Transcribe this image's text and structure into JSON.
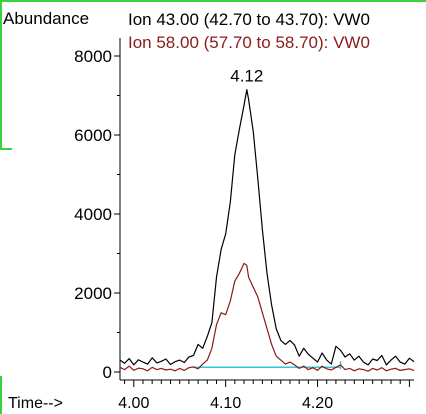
{
  "colors": {
    "frame": "#3ad13a",
    "ion43": "#000000",
    "ion58": "#8b1a1a",
    "baseline": "#33c8d8"
  },
  "chart_data": {
    "type": "line",
    "ylabel": "Abundance",
    "xlabel": "Time-->",
    "xlim": [
      3.985,
      4.305
    ],
    "ylim": [
      0,
      8000
    ],
    "x_ticks": [
      "4.00",
      "4.10",
      "4.20"
    ],
    "y_ticks": [
      "0",
      "2000",
      "4000",
      "6000",
      "8000"
    ],
    "peak_label": {
      "text": "4.12",
      "x": 4.123,
      "y": 7150
    },
    "baseline_segment": {
      "x_start": 4.065,
      "x_end": 4.225,
      "y": 120
    },
    "series": [
      {
        "name": "Ion  43.00 (42.70 to 43.70): VW0",
        "color": "#000000",
        "x": [
          3.985,
          3.99,
          3.995,
          4.0,
          4.005,
          4.01,
          4.015,
          4.02,
          4.025,
          4.03,
          4.035,
          4.04,
          4.045,
          4.05,
          4.055,
          4.06,
          4.065,
          4.07,
          4.075,
          4.08,
          4.085,
          4.09,
          4.095,
          4.1,
          4.105,
          4.11,
          4.115,
          4.12,
          4.123,
          4.125,
          4.13,
          4.135,
          4.14,
          4.145,
          4.15,
          4.155,
          4.16,
          4.165,
          4.17,
          4.175,
          4.18,
          4.185,
          4.19,
          4.195,
          4.2,
          4.205,
          4.21,
          4.215,
          4.22,
          4.225,
          4.23,
          4.235,
          4.24,
          4.245,
          4.25,
          4.255,
          4.26,
          4.265,
          4.27,
          4.275,
          4.28,
          4.285,
          4.29,
          4.295,
          4.3,
          4.305
        ],
        "y": [
          300,
          220,
          340,
          180,
          310,
          250,
          200,
          360,
          230,
          270,
          330,
          190,
          260,
          300,
          240,
          380,
          420,
          700,
          600,
          900,
          1250,
          2400,
          3100,
          3500,
          4300,
          5500,
          6150,
          6750,
          7150,
          6900,
          6100,
          4900,
          3600,
          2500,
          1700,
          1100,
          800,
          700,
          800,
          680,
          400,
          600,
          450,
          350,
          250,
          480,
          300,
          200,
          650,
          550,
          380,
          460,
          300,
          400,
          250,
          180,
          330,
          290,
          420,
          180,
          300,
          400,
          250,
          200,
          350,
          260
        ]
      },
      {
        "name": "Ion  58.00 (57.70 to 58.70): VW0",
        "color": "#8b1a1a",
        "x": [
          3.985,
          3.99,
          3.995,
          4.0,
          4.005,
          4.01,
          4.015,
          4.02,
          4.025,
          4.03,
          4.035,
          4.04,
          4.045,
          4.05,
          4.055,
          4.06,
          4.065,
          4.07,
          4.075,
          4.08,
          4.085,
          4.09,
          4.095,
          4.1,
          4.105,
          4.11,
          4.115,
          4.12,
          4.123,
          4.125,
          4.13,
          4.135,
          4.14,
          4.145,
          4.15,
          4.155,
          4.16,
          4.165,
          4.17,
          4.175,
          4.18,
          4.185,
          4.19,
          4.195,
          4.2,
          4.205,
          4.21,
          4.215,
          4.22,
          4.225,
          4.23,
          4.235,
          4.24,
          4.245,
          4.25,
          4.255,
          4.26,
          4.265,
          4.27,
          4.275,
          4.28,
          4.285,
          4.29,
          4.295,
          4.3,
          4.305
        ],
        "y": [
          120,
          60,
          150,
          40,
          100,
          80,
          30,
          120,
          60,
          90,
          50,
          70,
          30,
          90,
          40,
          110,
          130,
          80,
          200,
          300,
          600,
          1200,
          1500,
          1450,
          1800,
          2300,
          2500,
          2750,
          2700,
          2400,
          2150,
          1900,
          1500,
          1100,
          700,
          400,
          300,
          200,
          250,
          180,
          90,
          150,
          60,
          110,
          40,
          150,
          80,
          50,
          120,
          180,
          60,
          90,
          30,
          80,
          60,
          20,
          90,
          50,
          110,
          30,
          70,
          90,
          40,
          60,
          80,
          40
        ]
      }
    ]
  }
}
